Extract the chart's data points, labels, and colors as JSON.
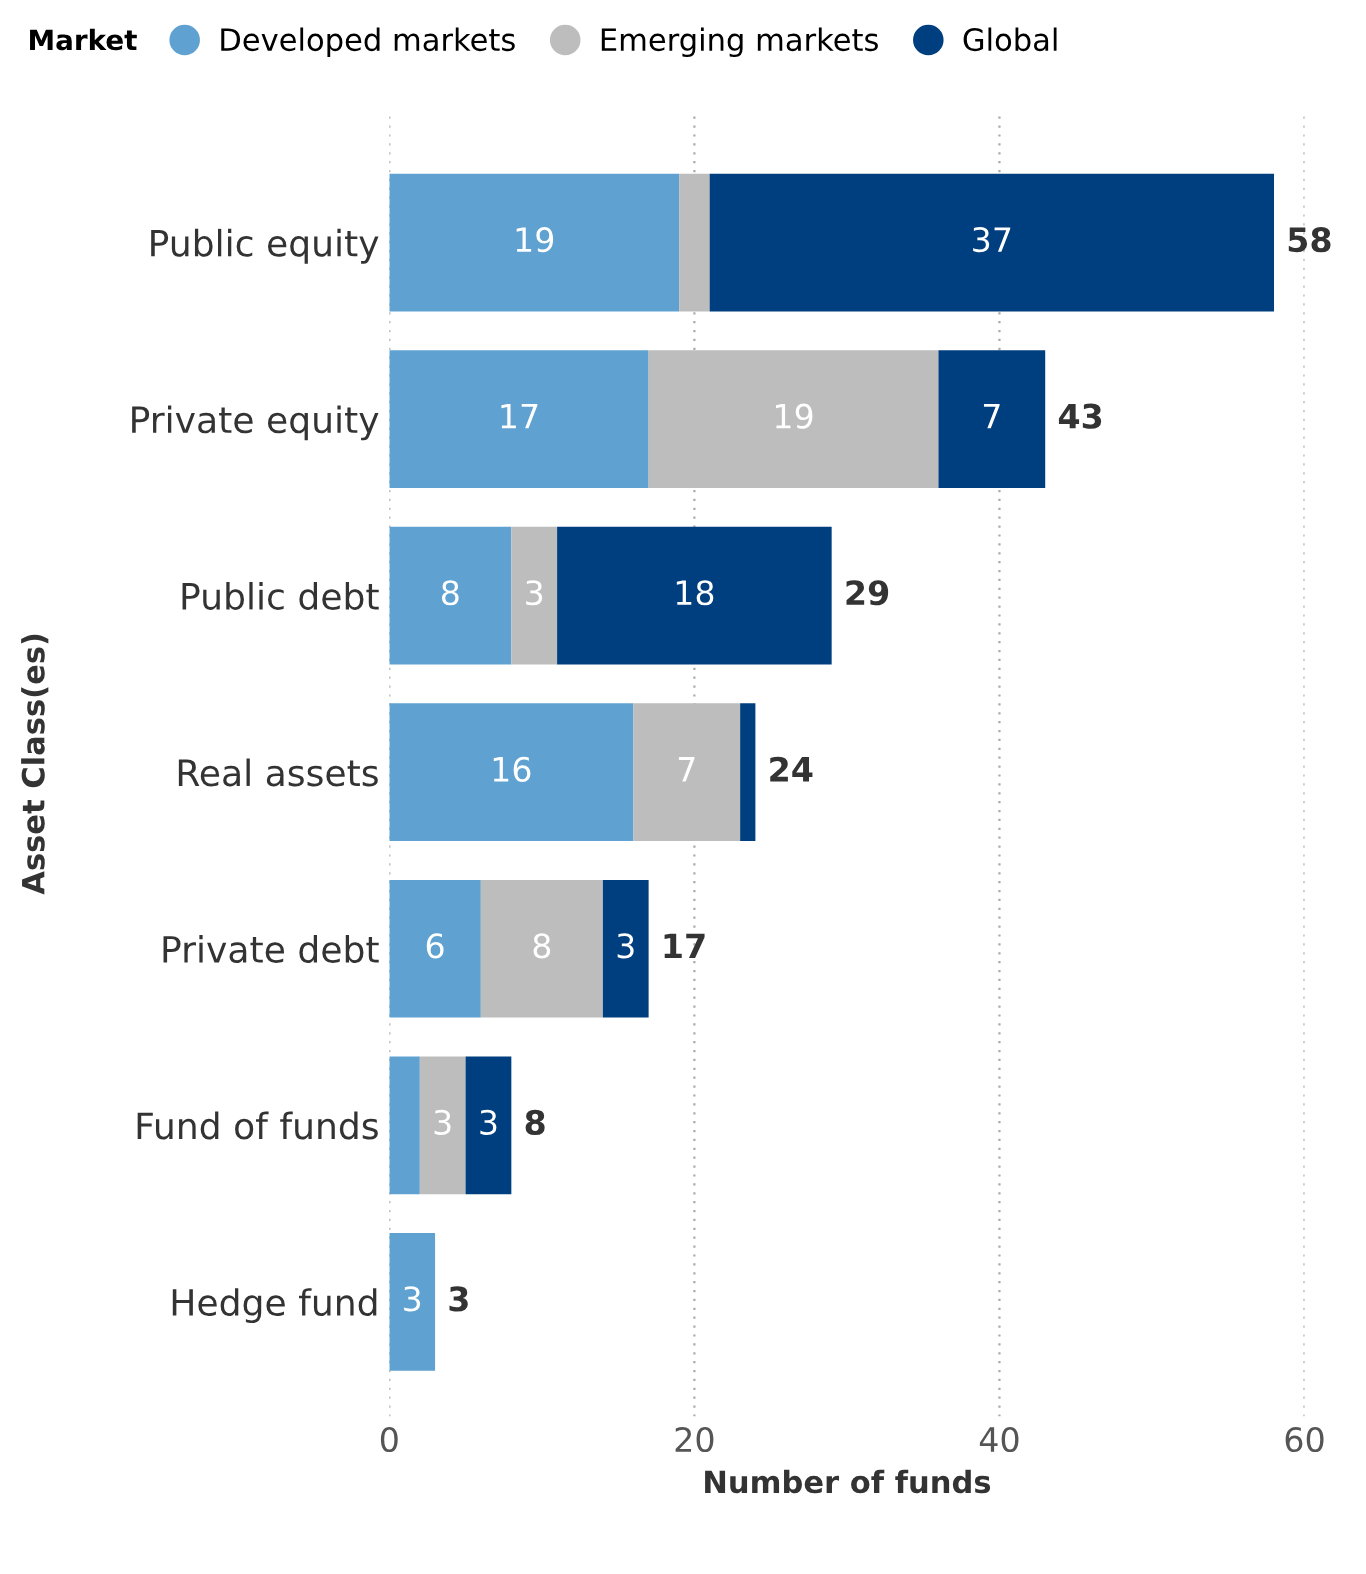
{
  "chart_data": {
    "type": "bar",
    "orientation": "horizontal",
    "stacked": true,
    "xlabel": "Number of funds",
    "ylabel": "Asset Class(es)",
    "legend_title": "Market",
    "legend": "top left",
    "categories": [
      "Public equity",
      "Private equity",
      "Public debt",
      "Real assets",
      "Private debt",
      "Fund of funds",
      "Hedge fund"
    ],
    "series": [
      {
        "name": "Developed markets",
        "color": "#5fa2d1",
        "values": [
          19,
          17,
          8,
          16,
          6,
          2,
          3
        ],
        "value_labels": [
          "19",
          "17",
          "8",
          "16",
          "6",
          null,
          "3"
        ]
      },
      {
        "name": "Emerging markets",
        "color": "#bdbdbd",
        "values": [
          2,
          19,
          3,
          7,
          8,
          3,
          null
        ],
        "value_labels": [
          null,
          "19",
          "3",
          "7",
          "8",
          "3",
          null
        ]
      },
      {
        "name": "Global",
        "color": "#003f7f",
        "values": [
          37,
          7,
          18,
          1,
          3,
          3,
          null
        ],
        "value_labels": [
          "37",
          "7",
          "18",
          null,
          "3",
          "3",
          null
        ]
      }
    ],
    "totals": [
      "58",
      "43",
      "29",
      "24",
      "17",
      "8",
      "3"
    ],
    "xlim": [
      0,
      60
    ],
    "xticks": [
      0,
      20,
      40,
      60
    ],
    "grid": "x"
  }
}
